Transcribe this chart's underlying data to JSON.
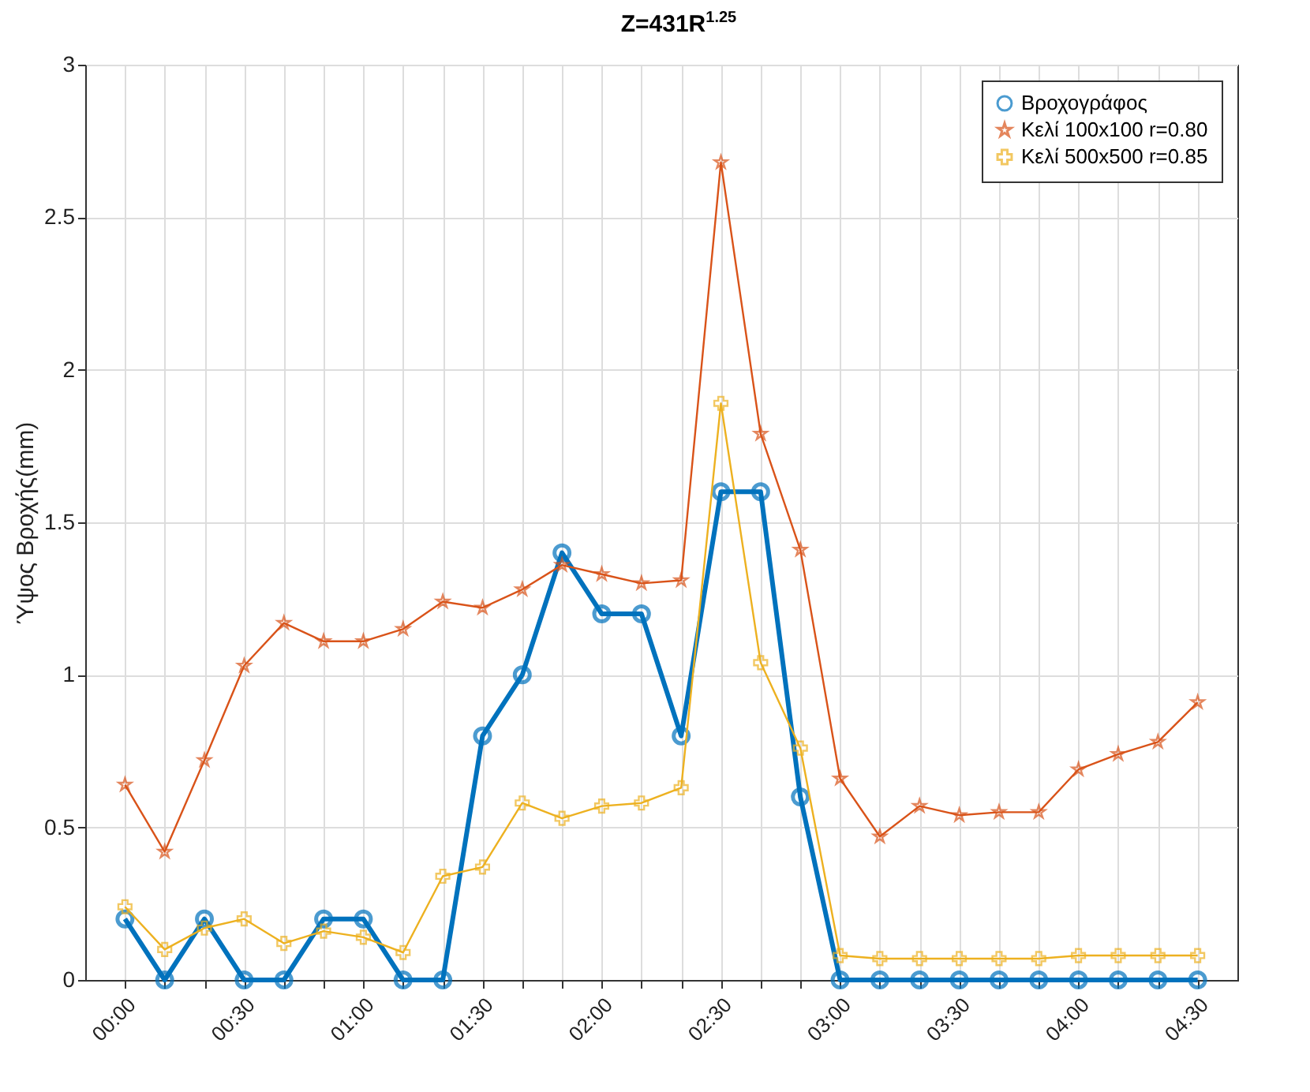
{
  "chart_data": {
    "type": "line",
    "title": "Z=431R$^{1.25}$",
    "ylabel": "Ύψος Βροχής(mm)",
    "x": [
      0,
      0.1667,
      0.3333,
      0.5,
      0.6667,
      0.8333,
      1,
      1.1667,
      1.3333,
      1.5,
      1.6667,
      1.8333,
      2,
      2.1667,
      2.3333,
      2.5,
      2.6667,
      2.8333,
      3,
      3.1667,
      3.3333,
      3.5,
      3.6667,
      3.8333,
      4,
      4.1667,
      4.3333,
      4.5
    ],
    "series": [
      {
        "name": "Βροχογράφος",
        "color": "#0072bd",
        "marker": "circle",
        "values": [
          0.2,
          0,
          0.2,
          0,
          0,
          0.2,
          0.2,
          0,
          0,
          0.8,
          1.0,
          1.4,
          1.2,
          1.2,
          0.8,
          1.6,
          1.6,
          0.6,
          0,
          0,
          0,
          0,
          0,
          0,
          0,
          0,
          0,
          0
        ]
      },
      {
        "name": "Κελί 100x100 r=0.80",
        "color": "#d95319",
        "marker": "star",
        "values": [
          0.64,
          0.42,
          0.72,
          1.03,
          1.17,
          1.11,
          1.11,
          1.15,
          1.24,
          1.22,
          1.28,
          1.36,
          1.33,
          1.3,
          1.31,
          2.68,
          1.79,
          1.41,
          0.66,
          0.47,
          0.57,
          0.54,
          0.55,
          0.55,
          0.69,
          0.74,
          0.78,
          0.91
        ]
      },
      {
        "name": "Κελί 500x500 r=0.85",
        "color": "#edb120",
        "marker": "cross",
        "values": [
          0.24,
          0.1,
          0.17,
          0.2,
          0.12,
          0.16,
          0.14,
          0.09,
          0.34,
          0.37,
          0.58,
          0.53,
          0.57,
          0.58,
          0.63,
          1.89,
          1.04,
          0.76,
          0.08,
          0.07,
          0.07,
          0.07,
          0.07,
          0.07,
          0.08,
          0.08,
          0.08,
          0.08
        ]
      }
    ],
    "xlim": [
      -0.1667,
      4.6667
    ],
    "xticks": [
      {
        "value": 0,
        "label": "00:00"
      },
      {
        "value": 0.1667,
        "label": null
      },
      {
        "value": 0.3333,
        "label": null
      },
      {
        "value": 0.5,
        "label": "00:30"
      },
      {
        "value": 0.6667,
        "label": null
      },
      {
        "value": 0.8333,
        "label": null
      },
      {
        "value": 1,
        "label": "01:00"
      },
      {
        "value": 1.1667,
        "label": null
      },
      {
        "value": 1.3333,
        "label": null
      },
      {
        "value": 1.5,
        "label": "01:30"
      },
      {
        "value": 1.6667,
        "label": null
      },
      {
        "value": 1.8333,
        "label": null
      },
      {
        "value": 2,
        "label": "02:00"
      },
      {
        "value": 2.1667,
        "label": null
      },
      {
        "value": 2.3333,
        "label": null
      },
      {
        "value": 2.5,
        "label": "02:30"
      },
      {
        "value": 2.6667,
        "label": null
      },
      {
        "value": 2.8333,
        "label": null
      },
      {
        "value": 3,
        "label": "03:00"
      },
      {
        "value": 3.1667,
        "label": null
      },
      {
        "value": 3.3333,
        "label": null
      },
      {
        "value": 3.5,
        "label": "03:30"
      },
      {
        "value": 3.6667,
        "label": null
      },
      {
        "value": 3.8333,
        "label": null
      },
      {
        "value": 4,
        "label": "04:00"
      },
      {
        "value": 4.1667,
        "label": null
      },
      {
        "value": 4.3333,
        "label": null
      },
      {
        "value": 4.5,
        "label": "04:30"
      }
    ],
    "ylim": [
      0,
      3
    ],
    "yticks": [
      0,
      0.5,
      1,
      1.5,
      2,
      2.5,
      3
    ],
    "grid": true,
    "legend": "top right",
    "line_style": "solid"
  }
}
